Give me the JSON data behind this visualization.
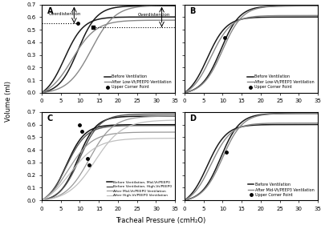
{
  "figsize": [
    4.0,
    2.81
  ],
  "dpi": 100,
  "xlabel": "Tracheal Pressure (cmH₂O)",
  "ylabel": "Volume (ml)",
  "xlim": [
    0,
    35
  ],
  "ylim": [
    0,
    0.7
  ],
  "yticks": [
    0.0,
    0.1,
    0.2,
    0.3,
    0.4,
    0.5,
    0.6,
    0.7
  ],
  "xticks": [
    0,
    5,
    10,
    15,
    20,
    25,
    30,
    35
  ]
}
